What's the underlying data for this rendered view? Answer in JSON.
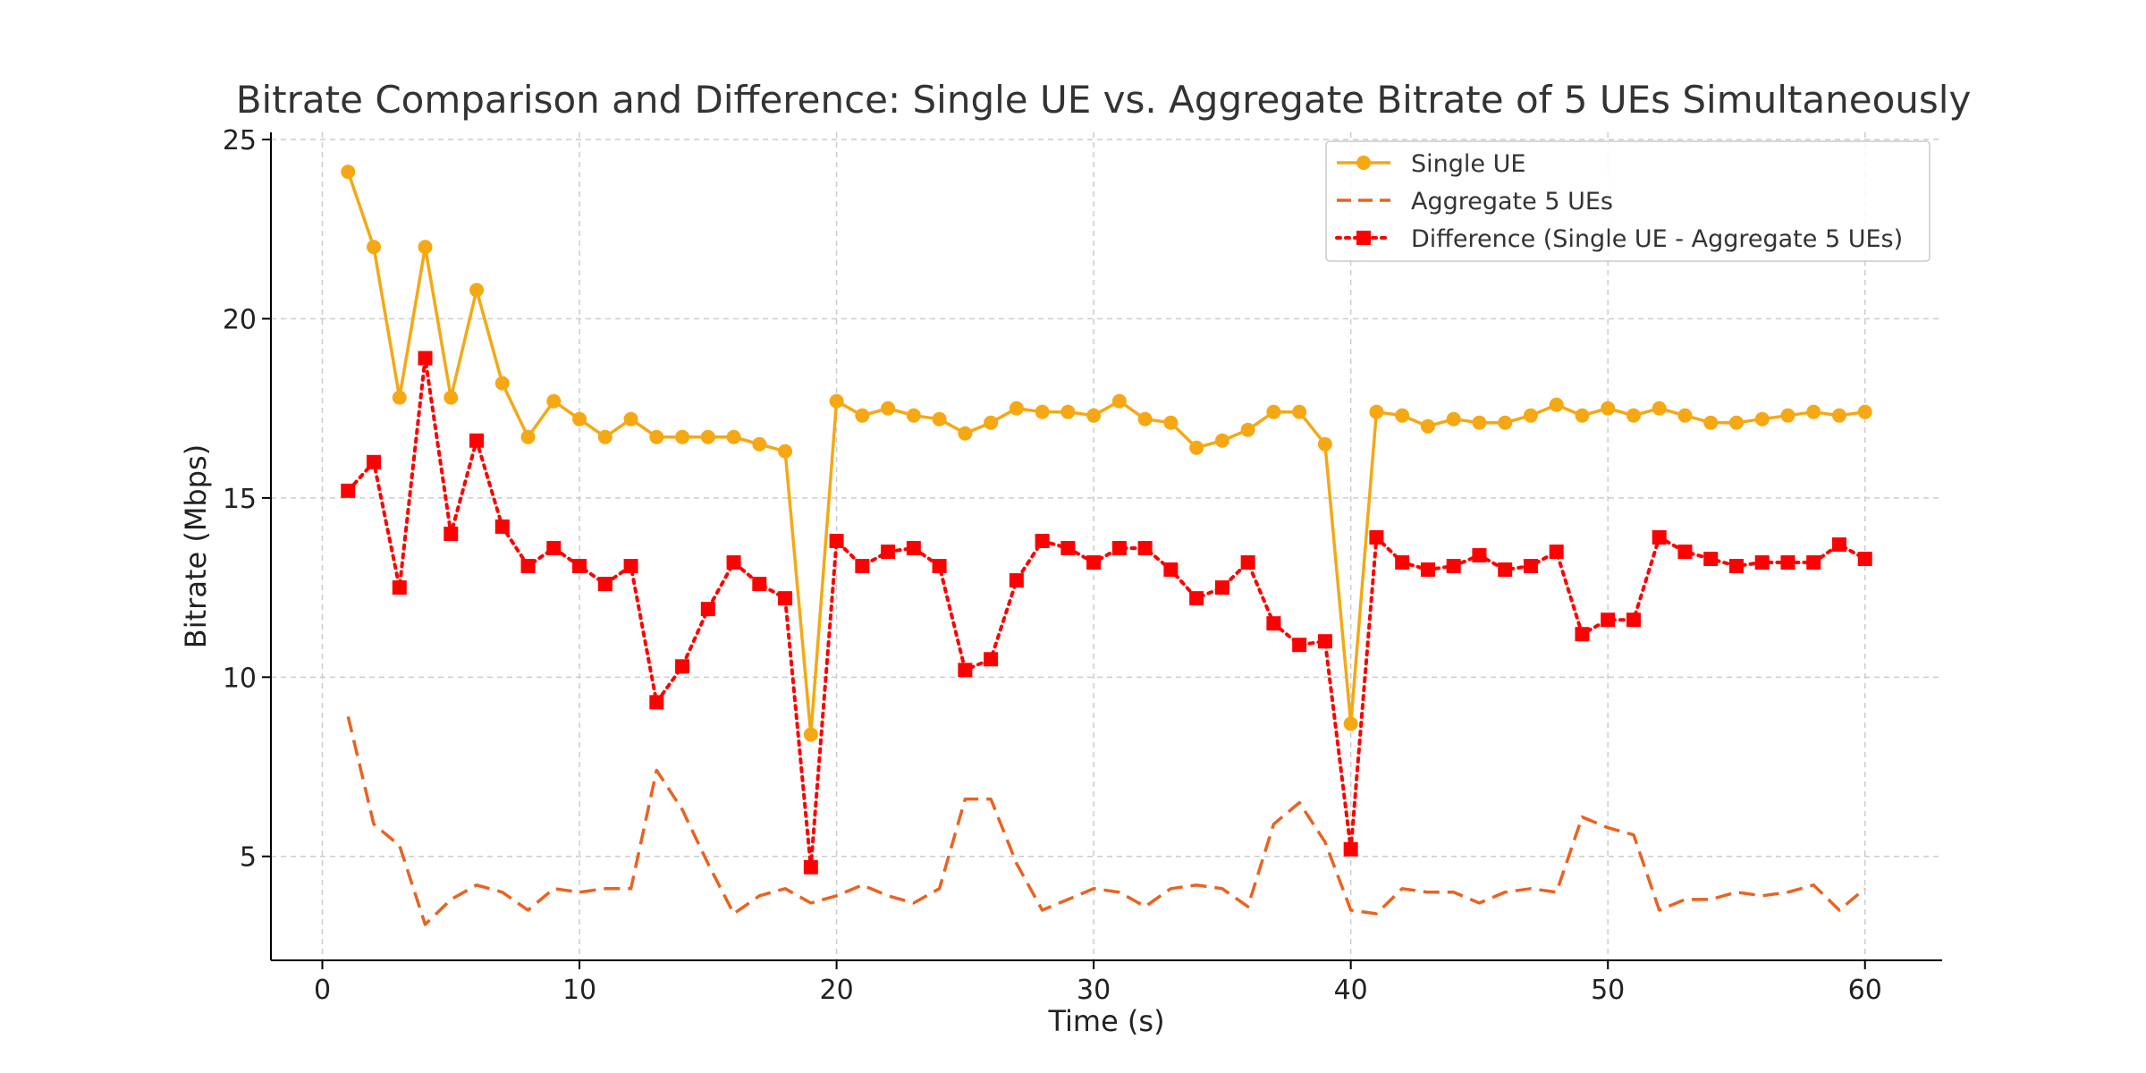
{
  "chart_data": {
    "type": "line",
    "title": "Bitrate Comparison and Difference: Single UE vs. Aggregate Bitrate of 5 UEs Simultaneously",
    "xlabel": "Time (s)",
    "ylabel": "Bitrate (Mbps)",
    "xlim": [
      -2,
      63
    ],
    "ylim": [
      2.1,
      25.2
    ],
    "xticks": [
      0,
      10,
      20,
      30,
      40,
      50,
      60
    ],
    "yticks": [
      5,
      10,
      15,
      20,
      25
    ],
    "grid": true,
    "legend_position": "top-right",
    "x": [
      1,
      2,
      3,
      4,
      5,
      6,
      7,
      8,
      9,
      10,
      11,
      12,
      13,
      14,
      15,
      16,
      17,
      18,
      19,
      20,
      21,
      22,
      23,
      24,
      25,
      26,
      27,
      28,
      29,
      30,
      31,
      32,
      33,
      34,
      35,
      36,
      37,
      38,
      39,
      40,
      41,
      42,
      43,
      44,
      45,
      46,
      47,
      48,
      49,
      50,
      51,
      52,
      53,
      54,
      55,
      56,
      57,
      58,
      59,
      60
    ],
    "series": [
      {
        "name": "Single UE",
        "color": "#f5a814",
        "style": "solid",
        "marker": "circle",
        "values": [
          24.1,
          22.0,
          17.8,
          22.0,
          17.8,
          20.8,
          18.2,
          16.7,
          17.7,
          17.2,
          16.7,
          17.2,
          16.7,
          16.7,
          16.7,
          16.7,
          16.5,
          16.3,
          8.4,
          17.7,
          17.3,
          17.5,
          17.3,
          17.2,
          16.8,
          17.1,
          17.5,
          17.4,
          17.4,
          17.3,
          17.7,
          17.2,
          17.1,
          16.4,
          16.6,
          16.9,
          17.4,
          17.4,
          16.5,
          8.7,
          17.4,
          17.3,
          17.0,
          17.2,
          17.1,
          17.1,
          17.3,
          17.6,
          17.3,
          17.5,
          17.3,
          17.5,
          17.3,
          17.1,
          17.1,
          17.2,
          17.3,
          17.4,
          17.3,
          17.4
        ]
      },
      {
        "name": "Aggregate 5 UEs",
        "color": "#ea6220",
        "style": "dashed",
        "marker": "none",
        "values": [
          8.9,
          5.9,
          5.3,
          3.1,
          3.8,
          4.2,
          4.0,
          3.5,
          4.1,
          4.0,
          4.1,
          4.1,
          7.4,
          6.3,
          4.8,
          3.4,
          3.9,
          4.1,
          3.7,
          3.9,
          4.2,
          3.9,
          3.7,
          4.1,
          6.6,
          6.6,
          4.8,
          3.5,
          3.8,
          4.1,
          4.0,
          3.6,
          4.1,
          4.2,
          4.1,
          3.6,
          5.9,
          6.5,
          5.4,
          3.5,
          3.4,
          4.1,
          4.0,
          4.0,
          3.7,
          4.0,
          4.1,
          4.0,
          6.1,
          5.8,
          5.6,
          3.5,
          3.8,
          3.8,
          4.0,
          3.9,
          4.0,
          4.2,
          3.5,
          4.1
        ]
      },
      {
        "name": "Difference (Single UE - Aggregate 5 UEs)",
        "color": "#ff0000",
        "style": "dotted",
        "marker": "square",
        "values": [
          15.2,
          16.0,
          12.5,
          18.9,
          14.0,
          16.6,
          14.2,
          13.1,
          13.6,
          13.1,
          12.6,
          13.1,
          9.3,
          10.3,
          11.9,
          13.2,
          12.6,
          12.2,
          4.7,
          13.8,
          13.1,
          13.5,
          13.6,
          13.1,
          10.2,
          10.5,
          12.7,
          13.8,
          13.6,
          13.2,
          13.6,
          13.6,
          13.0,
          12.2,
          12.5,
          13.2,
          11.5,
          10.9,
          11.0,
          5.2,
          13.9,
          13.2,
          13.0,
          13.1,
          13.4,
          13.0,
          13.1,
          13.5,
          11.2,
          11.6,
          11.6,
          13.9,
          13.5,
          13.3,
          13.1,
          13.2,
          13.2,
          13.2,
          13.7,
          13.3
        ]
      }
    ]
  }
}
